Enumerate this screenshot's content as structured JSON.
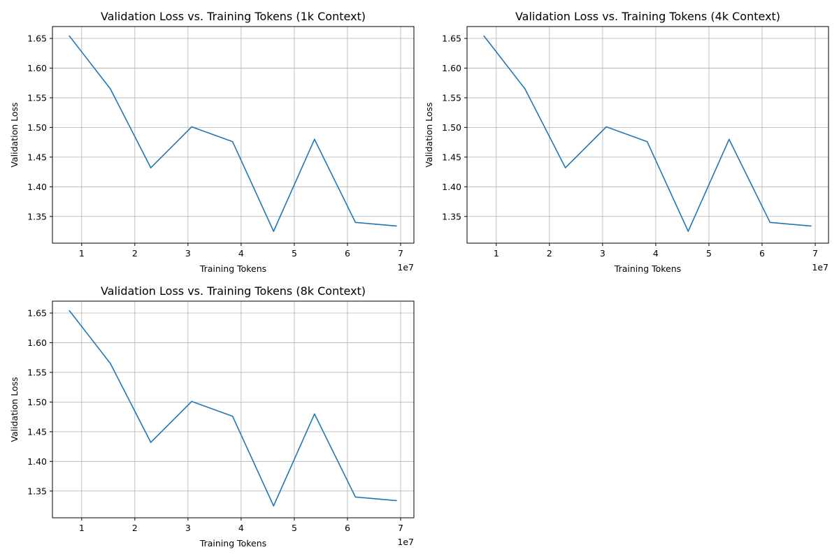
{
  "colors": {
    "series": "#1f77b4",
    "grid": "#b0b0b0"
  },
  "chart_data": [
    {
      "type": "line",
      "title": "Validation Loss vs. Training Tokens (1k Context)",
      "xlabel": "Training Tokens",
      "ylabel": "Validation Loss",
      "x_offset_label": "1e7",
      "grid": true,
      "xlim": [
        4.5,
        72.5
      ],
      "ylim": [
        1.305,
        1.67
      ],
      "xticks": [
        10,
        20,
        30,
        40,
        50,
        60,
        70
      ],
      "xtick_labels": [
        "1",
        "2",
        "3",
        "4",
        "5",
        "6",
        "7"
      ],
      "yticks": [
        1.35,
        1.4,
        1.45,
        1.5,
        1.55,
        1.6,
        1.65
      ],
      "ytick_labels": [
        "1.35",
        "1.40",
        "1.45",
        "1.50",
        "1.55",
        "1.60",
        "1.65"
      ],
      "series": [
        {
          "x": [
            7.7,
            15.4,
            23.0,
            30.7,
            38.4,
            46.1,
            53.8,
            61.5,
            69.2
          ],
          "y": [
            1.654,
            1.565,
            1.432,
            1.501,
            1.476,
            1.325,
            1.48,
            1.34,
            1.334
          ]
        }
      ]
    },
    {
      "type": "line",
      "title": "Validation Loss vs. Training Tokens (4k Context)",
      "xlabel": "Training Tokens",
      "ylabel": "Validation Loss",
      "x_offset_label": "1e7",
      "grid": true,
      "xlim": [
        4.5,
        72.5
      ],
      "ylim": [
        1.305,
        1.67
      ],
      "xticks": [
        10,
        20,
        30,
        40,
        50,
        60,
        70
      ],
      "xtick_labels": [
        "1",
        "2",
        "3",
        "4",
        "5",
        "6",
        "7"
      ],
      "yticks": [
        1.35,
        1.4,
        1.45,
        1.5,
        1.55,
        1.6,
        1.65
      ],
      "ytick_labels": [
        "1.35",
        "1.40",
        "1.45",
        "1.50",
        "1.55",
        "1.60",
        "1.65"
      ],
      "series": [
        {
          "x": [
            7.7,
            15.4,
            23.0,
            30.7,
            38.4,
            46.1,
            53.8,
            61.5,
            69.2
          ],
          "y": [
            1.654,
            1.565,
            1.432,
            1.501,
            1.476,
            1.325,
            1.48,
            1.34,
            1.334
          ]
        }
      ]
    },
    {
      "type": "line",
      "title": "Validation Loss vs. Training Tokens (8k Context)",
      "xlabel": "Training Tokens",
      "ylabel": "Validation Loss",
      "x_offset_label": "1e7",
      "grid": true,
      "xlim": [
        4.5,
        72.5
      ],
      "ylim": [
        1.305,
        1.67
      ],
      "xticks": [
        10,
        20,
        30,
        40,
        50,
        60,
        70
      ],
      "xtick_labels": [
        "1",
        "2",
        "3",
        "4",
        "5",
        "6",
        "7"
      ],
      "yticks": [
        1.35,
        1.4,
        1.45,
        1.5,
        1.55,
        1.6,
        1.65
      ],
      "ytick_labels": [
        "1.35",
        "1.40",
        "1.45",
        "1.50",
        "1.55",
        "1.60",
        "1.65"
      ],
      "series": [
        {
          "x": [
            7.7,
            15.4,
            23.0,
            30.7,
            38.4,
            46.1,
            53.8,
            61.5,
            69.2
          ],
          "y": [
            1.654,
            1.565,
            1.432,
            1.501,
            1.476,
            1.325,
            1.48,
            1.34,
            1.334
          ]
        }
      ]
    }
  ]
}
